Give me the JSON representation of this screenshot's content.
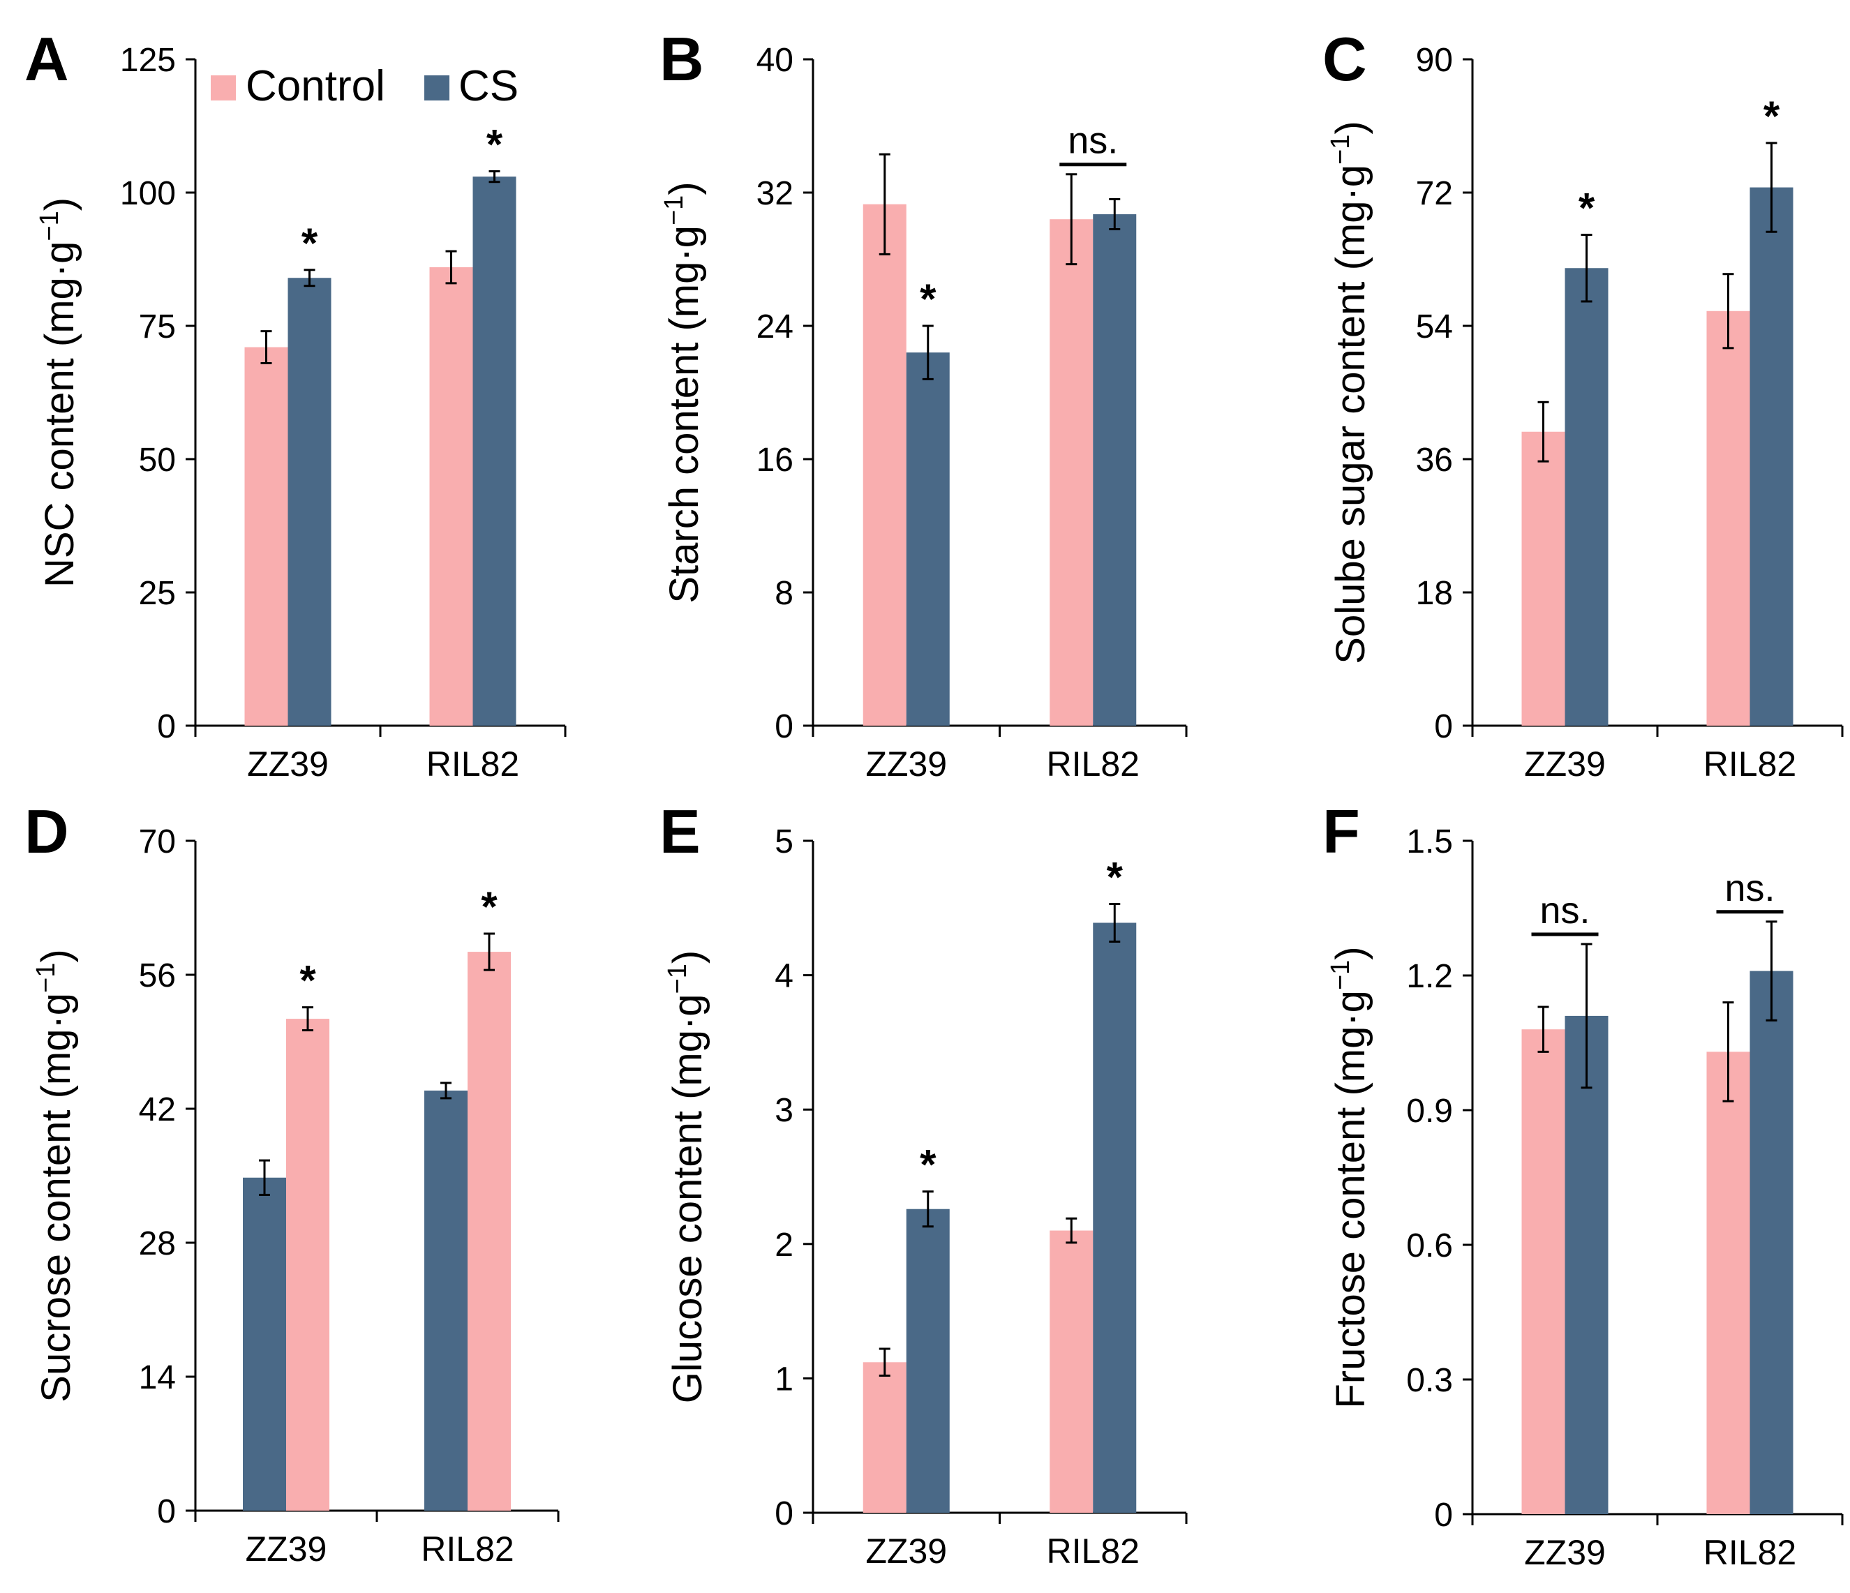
{
  "legend": {
    "items": [
      {
        "label": "Control",
        "color": "#F9AEAF"
      },
      {
        "label": "CS",
        "color": "#4A6987"
      }
    ]
  },
  "chart_data": [
    {
      "panel": "A",
      "type": "bar",
      "ylabel": "NSC content (mg·g",
      "ylabel_sup": "−1",
      "ylabel_end": ")",
      "ylim": [
        0,
        125
      ],
      "yticks": [
        0,
        25,
        50,
        75,
        100,
        125
      ],
      "categories": [
        "ZZ39",
        "RIL82"
      ],
      "series": [
        {
          "name": "Control",
          "color": "#F9AEAF",
          "values": [
            71,
            86
          ],
          "errors": [
            3,
            3
          ]
        },
        {
          "name": "CS",
          "color": "#4A6987",
          "values": [
            84,
            103
          ],
          "errors": [
            1.5,
            1
          ]
        }
      ],
      "significance": [
        {
          "category": 0,
          "label": "*",
          "type": "star"
        },
        {
          "category": 1,
          "label": "*",
          "type": "star"
        }
      ]
    },
    {
      "panel": "B",
      "type": "bar",
      "ylabel": "Starch content (mg·g",
      "ylabel_sup": "−1",
      "ylabel_end": ")",
      "ylim": [
        0,
        40
      ],
      "yticks": [
        0,
        8,
        16,
        24,
        32,
        40
      ],
      "categories": [
        "ZZ39",
        "RIL82"
      ],
      "series": [
        {
          "name": "Control",
          "color": "#F9AEAF",
          "values": [
            31.3,
            30.4
          ],
          "errors": [
            3,
            2.7
          ]
        },
        {
          "name": "CS",
          "color": "#4A6987",
          "values": [
            22.4,
            30.7
          ],
          "errors": [
            1.6,
            0.9
          ]
        }
      ],
      "significance": [
        {
          "category": 0,
          "label": "*",
          "type": "star"
        },
        {
          "category": 1,
          "label": "ns.",
          "type": "bracket"
        }
      ]
    },
    {
      "panel": "C",
      "type": "bar",
      "ylabel": "Solube sugar content (mg·g",
      "ylabel_sup": "−1",
      "ylabel_end": ")",
      "ylim": [
        0,
        90
      ],
      "yticks": [
        0,
        18,
        36,
        54,
        72,
        90
      ],
      "categories": [
        "ZZ39",
        "RIL82"
      ],
      "series": [
        {
          "name": "Control",
          "color": "#F9AEAF",
          "values": [
            39.7,
            56
          ],
          "errors": [
            4,
            5
          ]
        },
        {
          "name": "CS",
          "color": "#4A6987",
          "values": [
            61.8,
            72.7
          ],
          "errors": [
            4.5,
            6
          ]
        }
      ],
      "significance": [
        {
          "category": 0,
          "label": "*",
          "type": "star"
        },
        {
          "category": 1,
          "label": "*",
          "type": "star"
        }
      ]
    },
    {
      "panel": "D",
      "type": "bar",
      "ylabel": "Sucrose content (mg·g",
      "ylabel_sup": "−1",
      "ylabel_end": ")",
      "ylim": [
        0,
        70
      ],
      "yticks": [
        0,
        14,
        28,
        42,
        56,
        70
      ],
      "categories": [
        "ZZ39",
        "RIL82"
      ],
      "series": [
        {
          "name": "CS",
          "color": "#4A6987",
          "values": [
            34.8,
            43.9
          ],
          "errors": [
            1.8,
            0.8
          ]
        },
        {
          "name": "Control",
          "color": "#F9AEAF",
          "values": [
            51.4,
            58.4
          ],
          "errors": [
            1.2,
            1.9
          ]
        }
      ],
      "significance": [
        {
          "category": 0,
          "label": "*",
          "type": "star"
        },
        {
          "category": 1,
          "label": "*",
          "type": "star"
        }
      ]
    },
    {
      "panel": "E",
      "type": "bar",
      "ylabel": "Glucose content (mg·g",
      "ylabel_sup": "−1",
      "ylabel_end": ")",
      "ylim": [
        0,
        5
      ],
      "yticks": [
        0,
        1,
        2,
        3,
        4,
        5
      ],
      "categories": [
        "ZZ39",
        "RIL82"
      ],
      "series": [
        {
          "name": "Control",
          "color": "#F9AEAF",
          "values": [
            1.12,
            2.1
          ],
          "errors": [
            0.1,
            0.09
          ]
        },
        {
          "name": "CS",
          "color": "#4A6987",
          "values": [
            2.26,
            4.39
          ],
          "errors": [
            0.13,
            0.14
          ]
        }
      ],
      "significance": [
        {
          "category": 0,
          "label": "*",
          "type": "star"
        },
        {
          "category": 1,
          "label": "*",
          "type": "star"
        }
      ]
    },
    {
      "panel": "F",
      "type": "bar",
      "ylabel": "Fructose content (mg·g",
      "ylabel_sup": "−1",
      "ylabel_end": ")",
      "ylim": [
        0,
        1.5
      ],
      "yticks": [
        "0",
        "0.3",
        "0.6",
        "0.9",
        "1.2",
        "1.5"
      ],
      "categories": [
        "ZZ39",
        "RIL82"
      ],
      "series": [
        {
          "name": "Control",
          "color": "#F9AEAF",
          "values": [
            1.08,
            1.03
          ],
          "errors": [
            0.05,
            0.11
          ]
        },
        {
          "name": "CS",
          "color": "#4A6987",
          "values": [
            1.11,
            1.21
          ],
          "errors": [
            0.16,
            0.11
          ]
        }
      ],
      "significance": [
        {
          "category": 0,
          "label": "ns.",
          "type": "bracket"
        },
        {
          "category": 1,
          "label": "ns.",
          "type": "bracket"
        }
      ]
    }
  ]
}
